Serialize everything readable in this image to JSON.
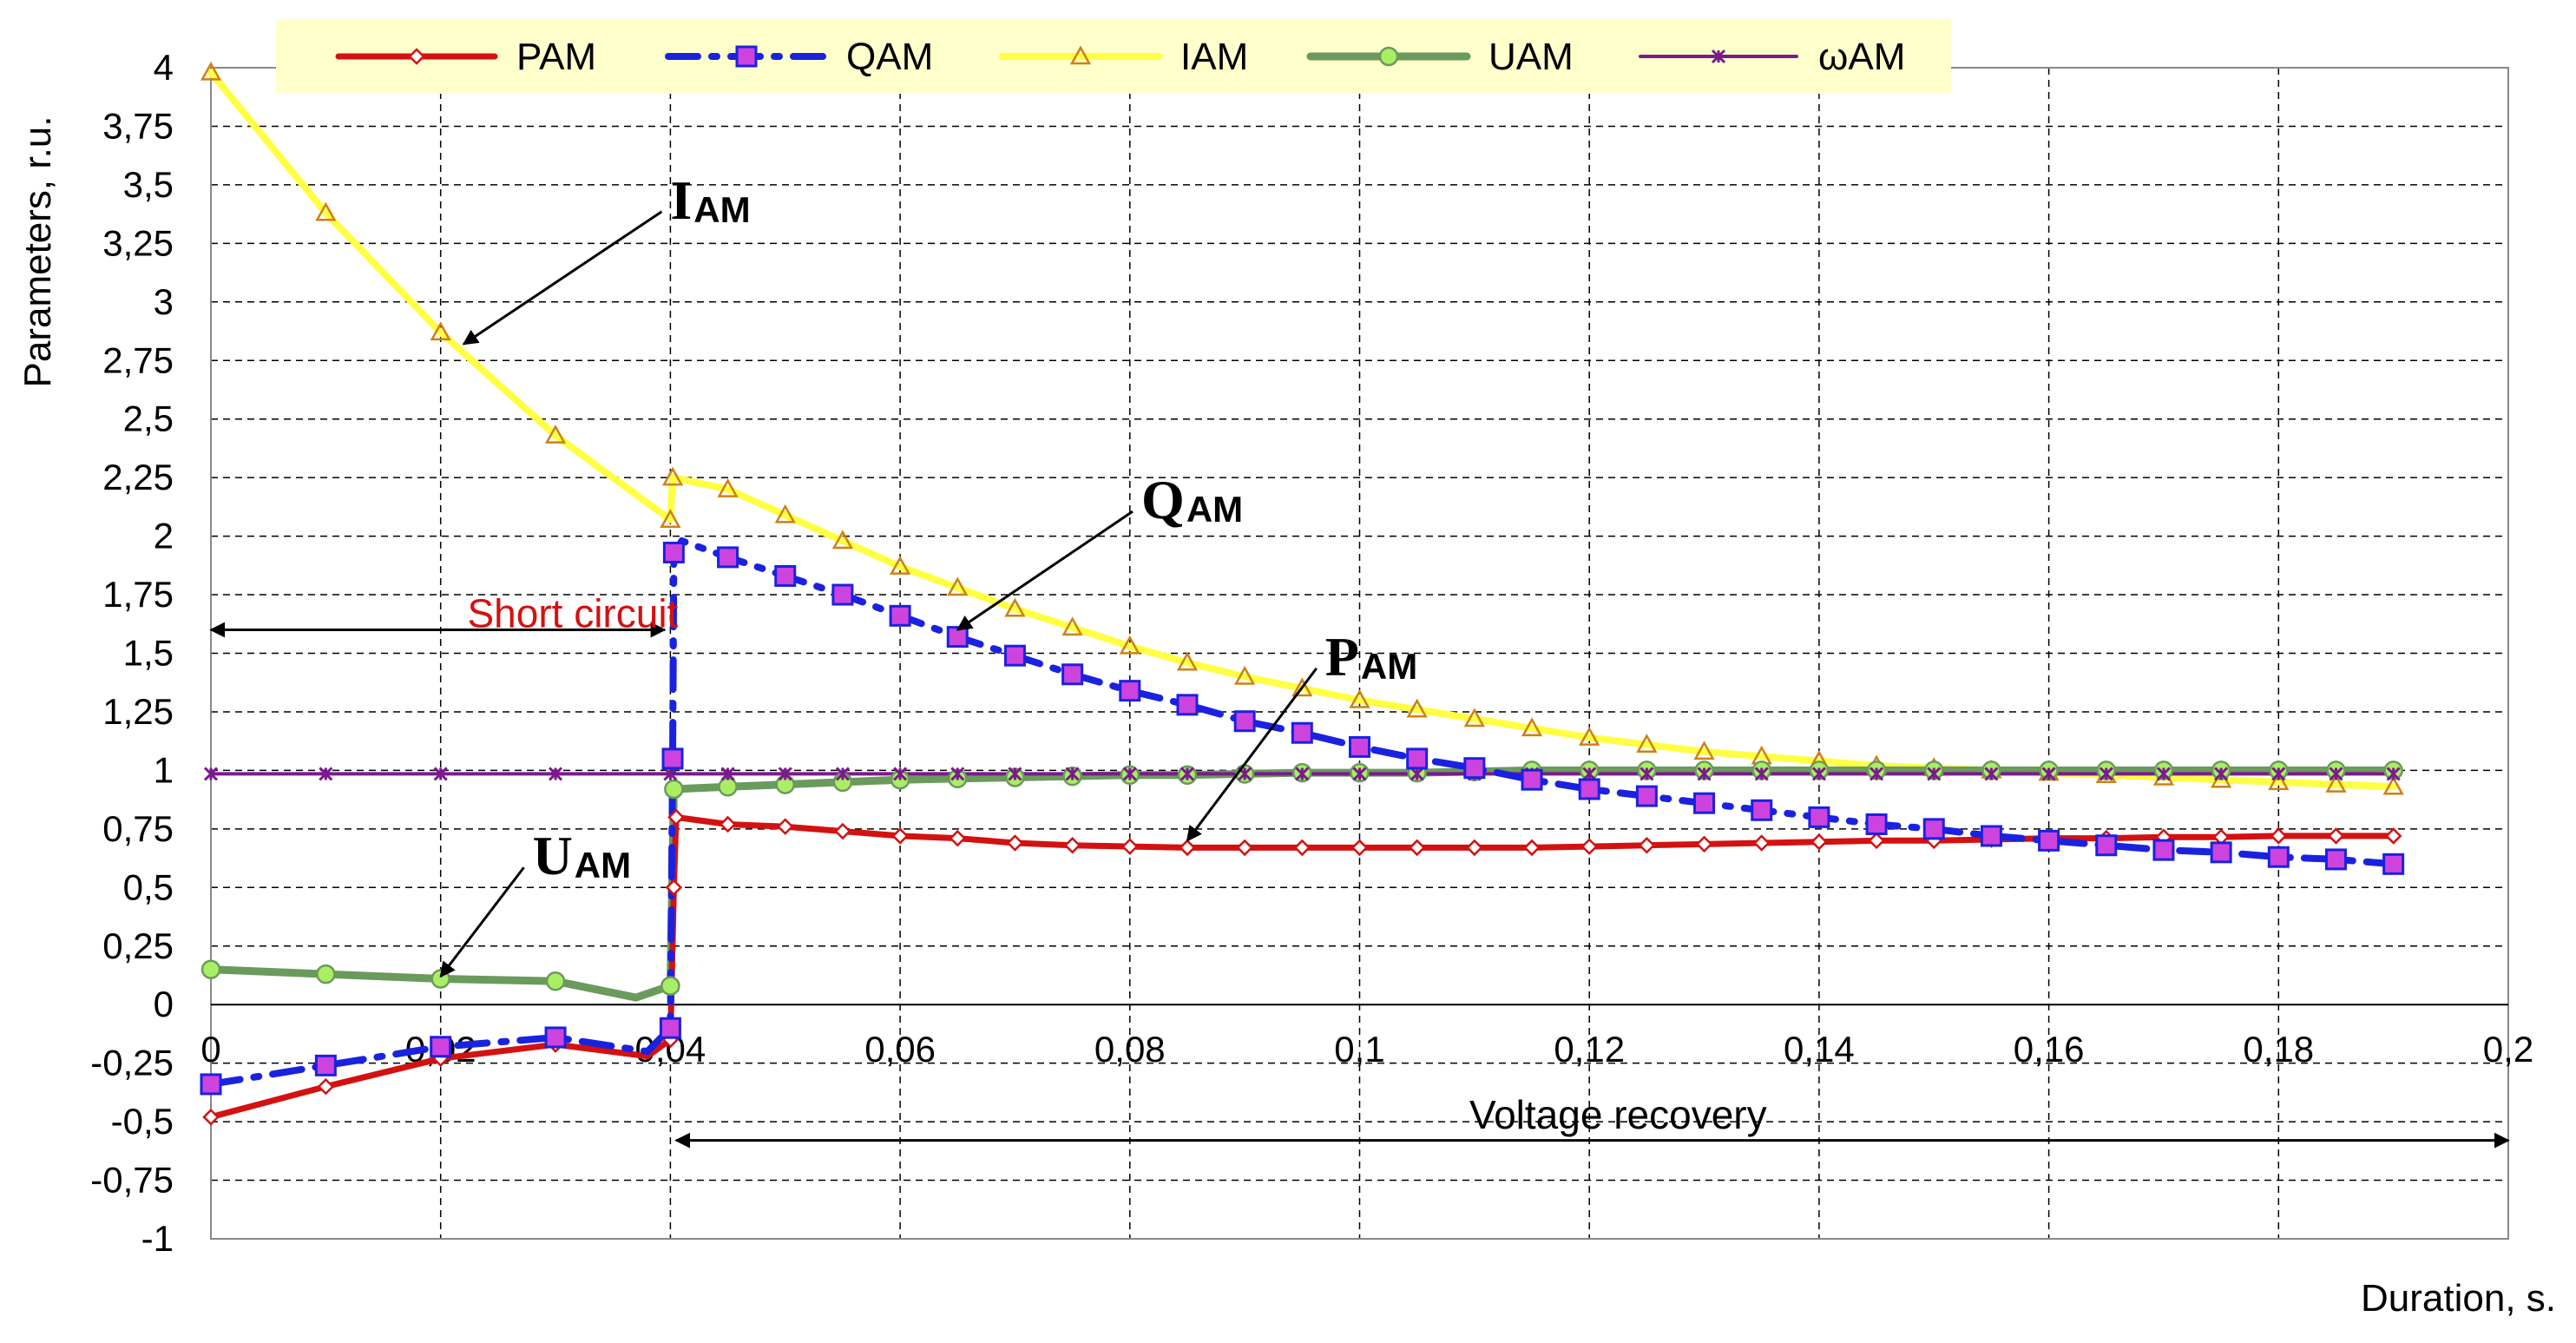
{
  "chart_data": {
    "type": "line",
    "title": "",
    "xlabel": "Duration, s.",
    "ylabel": "Parameters, r.u.",
    "xlim": [
      0,
      0.2
    ],
    "ylim": [
      -1,
      4
    ],
    "x_ticks": [
      "0",
      "0,02",
      "0,04",
      "0,06",
      "0,08",
      "0,1",
      "0,12",
      "0,14",
      "0,16",
      "0,18",
      "0,2"
    ],
    "y_ticks": [
      "-1",
      "-0,75",
      "-0,5",
      "-0,25",
      "0",
      "0,25",
      "0,5",
      "0,75",
      "1",
      "1,25",
      "1,5",
      "1,75",
      "2",
      "2,25",
      "2,5",
      "2,75",
      "3",
      "3,25",
      "3,5",
      "3,75",
      "4"
    ],
    "grid": true,
    "legend_position": "top",
    "series": [
      {
        "name": "PAM",
        "color": "#d41111",
        "marker": "diamond",
        "points": [
          [
            0,
            -0.48
          ],
          [
            0.01,
            -0.35
          ],
          [
            0.02,
            -0.23
          ],
          [
            0.03,
            -0.17
          ],
          [
            0.038,
            -0.22
          ],
          [
            0.04,
            -0.15
          ],
          [
            0.0403,
            0.5
          ],
          [
            0.0405,
            0.8
          ],
          [
            0.045,
            0.77
          ],
          [
            0.05,
            0.76
          ],
          [
            0.055,
            0.74
          ],
          [
            0.06,
            0.72
          ],
          [
            0.065,
            0.71
          ],
          [
            0.07,
            0.69
          ],
          [
            0.075,
            0.68
          ],
          [
            0.08,
            0.675
          ],
          [
            0.085,
            0.67
          ],
          [
            0.09,
            0.67
          ],
          [
            0.095,
            0.67
          ],
          [
            0.1,
            0.67
          ],
          [
            0.105,
            0.67
          ],
          [
            0.11,
            0.67
          ],
          [
            0.115,
            0.67
          ],
          [
            0.12,
            0.675
          ],
          [
            0.125,
            0.68
          ],
          [
            0.13,
            0.685
          ],
          [
            0.135,
            0.69
          ],
          [
            0.14,
            0.695
          ],
          [
            0.145,
            0.7
          ],
          [
            0.15,
            0.7
          ],
          [
            0.155,
            0.705
          ],
          [
            0.16,
            0.71
          ],
          [
            0.165,
            0.71
          ],
          [
            0.17,
            0.715
          ],
          [
            0.175,
            0.715
          ],
          [
            0.18,
            0.72
          ],
          [
            0.185,
            0.72
          ],
          [
            0.19,
            0.72
          ]
        ]
      },
      {
        "name": "QAM",
        "color": "#1a22e0",
        "marker": "square",
        "marker_color": "#cc33cc",
        "points": [
          [
            0,
            -0.34
          ],
          [
            0.01,
            -0.26
          ],
          [
            0.02,
            -0.18
          ],
          [
            0.03,
            -0.14
          ],
          [
            0.038,
            -0.2
          ],
          [
            0.04,
            -0.1
          ],
          [
            0.0402,
            1.05
          ],
          [
            0.0403,
            1.93
          ],
          [
            0.041,
            1.98
          ],
          [
            0.045,
            1.91
          ],
          [
            0.05,
            1.83
          ],
          [
            0.055,
            1.75
          ],
          [
            0.06,
            1.66
          ],
          [
            0.065,
            1.57
          ],
          [
            0.07,
            1.49
          ],
          [
            0.075,
            1.41
          ],
          [
            0.08,
            1.34
          ],
          [
            0.085,
            1.28
          ],
          [
            0.09,
            1.21
          ],
          [
            0.095,
            1.16
          ],
          [
            0.1,
            1.1
          ],
          [
            0.105,
            1.05
          ],
          [
            0.11,
            1.01
          ],
          [
            0.115,
            0.96
          ],
          [
            0.12,
            0.92
          ],
          [
            0.125,
            0.89
          ],
          [
            0.13,
            0.86
          ],
          [
            0.135,
            0.83
          ],
          [
            0.14,
            0.8
          ],
          [
            0.145,
            0.77
          ],
          [
            0.15,
            0.75
          ],
          [
            0.155,
            0.72
          ],
          [
            0.16,
            0.7
          ],
          [
            0.165,
            0.68
          ],
          [
            0.17,
            0.66
          ],
          [
            0.175,
            0.65
          ],
          [
            0.18,
            0.63
          ],
          [
            0.185,
            0.62
          ],
          [
            0.19,
            0.6
          ]
        ]
      },
      {
        "name": "IAM",
        "color": "#ffff44",
        "marker": "triangle",
        "marker_color": "#d08010",
        "points": [
          [
            0,
            3.98
          ],
          [
            0.01,
            3.38
          ],
          [
            0.02,
            2.87
          ],
          [
            0.03,
            2.43
          ],
          [
            0.04,
            2.07
          ],
          [
            0.0402,
            2.25
          ],
          [
            0.045,
            2.2
          ],
          [
            0.05,
            2.09
          ],
          [
            0.055,
            1.98
          ],
          [
            0.06,
            1.87
          ],
          [
            0.065,
            1.78
          ],
          [
            0.07,
            1.69
          ],
          [
            0.075,
            1.61
          ],
          [
            0.08,
            1.53
          ],
          [
            0.085,
            1.46
          ],
          [
            0.09,
            1.4
          ],
          [
            0.095,
            1.35
          ],
          [
            0.1,
            1.3
          ],
          [
            0.105,
            1.26
          ],
          [
            0.11,
            1.22
          ],
          [
            0.115,
            1.18
          ],
          [
            0.12,
            1.14
          ],
          [
            0.125,
            1.11
          ],
          [
            0.13,
            1.08
          ],
          [
            0.135,
            1.06
          ],
          [
            0.14,
            1.04
          ],
          [
            0.145,
            1.02
          ],
          [
            0.15,
            1.01
          ],
          [
            0.155,
            1.0
          ],
          [
            0.16,
            0.99
          ],
          [
            0.165,
            0.98
          ],
          [
            0.17,
            0.97
          ],
          [
            0.175,
            0.96
          ],
          [
            0.18,
            0.95
          ],
          [
            0.185,
            0.94
          ],
          [
            0.19,
            0.93
          ]
        ]
      },
      {
        "name": "UAM",
        "color": "#6a9a5c",
        "marker": "circle",
        "marker_color": "#99ee55",
        "points": [
          [
            0,
            0.15
          ],
          [
            0.01,
            0.13
          ],
          [
            0.02,
            0.11
          ],
          [
            0.03,
            0.1
          ],
          [
            0.037,
            0.03
          ],
          [
            0.04,
            0.08
          ],
          [
            0.0403,
            0.92
          ],
          [
            0.045,
            0.93
          ],
          [
            0.05,
            0.94
          ],
          [
            0.055,
            0.95
          ],
          [
            0.06,
            0.96
          ],
          [
            0.065,
            0.965
          ],
          [
            0.07,
            0.97
          ],
          [
            0.075,
            0.975
          ],
          [
            0.08,
            0.98
          ],
          [
            0.085,
            0.98
          ],
          [
            0.09,
            0.985
          ],
          [
            0.095,
            0.99
          ],
          [
            0.1,
            0.99
          ],
          [
            0.105,
            0.99
          ],
          [
            0.11,
            0.995
          ],
          [
            0.115,
            1.0
          ],
          [
            0.12,
            1.0
          ],
          [
            0.125,
            1.0
          ],
          [
            0.13,
            1.0
          ],
          [
            0.135,
            1.0
          ],
          [
            0.14,
            1.0
          ],
          [
            0.145,
            1.0
          ],
          [
            0.15,
            1.0
          ],
          [
            0.155,
            1.0
          ],
          [
            0.16,
            1.0
          ],
          [
            0.165,
            1.0
          ],
          [
            0.17,
            1.0
          ],
          [
            0.175,
            1.0
          ],
          [
            0.18,
            1.0
          ],
          [
            0.185,
            1.0
          ],
          [
            0.19,
            1.0
          ]
        ]
      },
      {
        "name": "ωAM",
        "color": "#7a1a8c",
        "marker": "star",
        "points": [
          [
            0,
            0.985
          ],
          [
            0.01,
            0.985
          ],
          [
            0.02,
            0.985
          ],
          [
            0.03,
            0.985
          ],
          [
            0.04,
            0.985
          ],
          [
            0.045,
            0.985
          ],
          [
            0.05,
            0.985
          ],
          [
            0.055,
            0.985
          ],
          [
            0.06,
            0.985
          ],
          [
            0.065,
            0.985
          ],
          [
            0.07,
            0.985
          ],
          [
            0.075,
            0.985
          ],
          [
            0.08,
            0.985
          ],
          [
            0.085,
            0.985
          ],
          [
            0.09,
            0.985
          ],
          [
            0.095,
            0.985
          ],
          [
            0.1,
            0.985
          ],
          [
            0.105,
            0.985
          ],
          [
            0.11,
            0.985
          ],
          [
            0.115,
            0.985
          ],
          [
            0.12,
            0.985
          ],
          [
            0.125,
            0.985
          ],
          [
            0.13,
            0.985
          ],
          [
            0.135,
            0.985
          ],
          [
            0.14,
            0.985
          ],
          [
            0.145,
            0.985
          ],
          [
            0.15,
            0.985
          ],
          [
            0.155,
            0.985
          ],
          [
            0.16,
            0.985
          ],
          [
            0.165,
            0.985
          ],
          [
            0.17,
            0.985
          ],
          [
            0.175,
            0.985
          ],
          [
            0.18,
            0.985
          ],
          [
            0.185,
            0.985
          ],
          [
            0.19,
            0.985
          ]
        ]
      }
    ],
    "annotations": [
      {
        "main": "I",
        "sub": "AM",
        "label_at": [
          0.04,
          3.43
        ],
        "arrow_to": [
          0.022,
          2.82
        ]
      },
      {
        "main": "Q",
        "sub": "AM",
        "label_at": [
          0.081,
          2.15
        ],
        "arrow_to": [
          0.065,
          1.6
        ]
      },
      {
        "main": "P",
        "sub": "AM",
        "label_at": [
          0.097,
          1.48
        ],
        "arrow_to": [
          0.085,
          0.7
        ]
      },
      {
        "main": "U",
        "sub": "AM",
        "label_at": [
          0.028,
          0.63
        ],
        "arrow_to": [
          0.02,
          0.12
        ]
      }
    ],
    "regions": [
      {
        "label": "Short circuit",
        "color": "#d41111",
        "from": 0,
        "to": 0.0395,
        "y": 1.6,
        "label_x": 0.0315,
        "label_y": 1.67
      },
      {
        "label": "Voltage recovery",
        "color": "#000000",
        "from": 0.0405,
        "to": 0.2,
        "y": -0.58,
        "label_x": 0.1225,
        "label_y": -0.47
      }
    ]
  }
}
